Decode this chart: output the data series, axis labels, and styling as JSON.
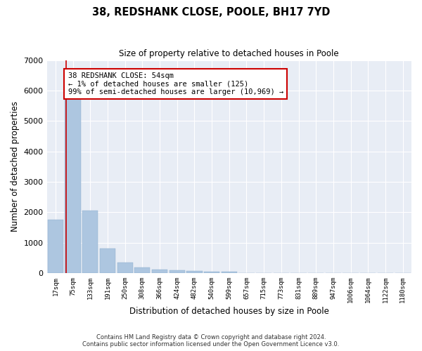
{
  "title": "38, REDSHANK CLOSE, POOLE, BH17 7YD",
  "subtitle": "Size of property relative to detached houses in Poole",
  "xlabel": "Distribution of detached houses by size in Poole",
  "ylabel": "Number of detached properties",
  "categories": [
    "17sqm",
    "75sqm",
    "133sqm",
    "191sqm",
    "250sqm",
    "308sqm",
    "366sqm",
    "424sqm",
    "482sqm",
    "540sqm",
    "599sqm",
    "657sqm",
    "715sqm",
    "773sqm",
    "831sqm",
    "889sqm",
    "947sqm",
    "1006sqm",
    "1064sqm",
    "1122sqm",
    "1180sqm"
  ],
  "values": [
    1750,
    5800,
    2050,
    800,
    350,
    175,
    125,
    100,
    70,
    50,
    40,
    0,
    0,
    0,
    0,
    0,
    0,
    0,
    0,
    0,
    0
  ],
  "bar_color": "#adc6e0",
  "annotation_text": "38 REDSHANK CLOSE: 54sqm\n← 1% of detached houses are smaller (125)\n99% of semi-detached houses are larger (10,969) →",
  "annotation_box_color": "#cc0000",
  "bg_color": "#e8edf5",
  "grid_color": "#ffffff",
  "ylim": [
    0,
    7000
  ],
  "yticks": [
    0,
    1000,
    2000,
    3000,
    4000,
    5000,
    6000,
    7000
  ],
  "footer_line1": "Contains HM Land Registry data © Crown copyright and database right 2024.",
  "footer_line2": "Contains public sector information licensed under the Open Government Licence v3.0."
}
